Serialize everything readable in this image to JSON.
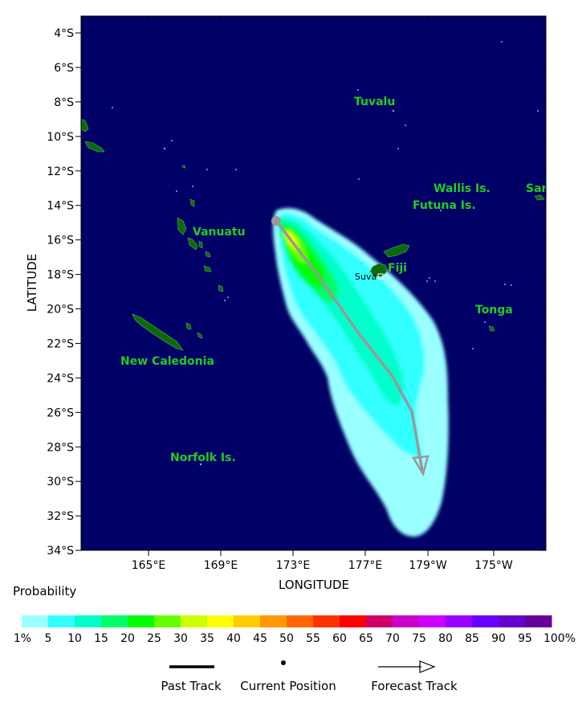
{
  "map": {
    "lat_range_deg_south": [
      3,
      34
    ],
    "lon_range": {
      "start": "162°E",
      "end": "173°W"
    },
    "background_ocean": "#000066",
    "land_color": "#0a6a0a",
    "y_ticks": [
      "4°S",
      "6°S",
      "8°S",
      "10°S",
      "12°S",
      "14°S",
      "16°S",
      "18°S",
      "20°S",
      "22°S",
      "24°S",
      "26°S",
      "28°S",
      "30°S",
      "32°S",
      "34°S"
    ],
    "x_ticks": [
      "165°E",
      "169°E",
      "173°E",
      "177°E",
      "179°W",
      "175°W"
    ],
    "x_title": "LONGITUDE",
    "y_title": "LATITUDE",
    "places": [
      {
        "name": "Tuvalu"
      },
      {
        "name": "Wallis Is."
      },
      {
        "name": "Sar"
      },
      {
        "name": "Futuna Is."
      },
      {
        "name": "Vanuatu"
      },
      {
        "name": "Fiji"
      },
      {
        "name": "Tonga"
      },
      {
        "name": "New Caledonia"
      },
      {
        "name": "Norfolk Is."
      }
    ],
    "city": {
      "name": "Suva"
    }
  },
  "track": {
    "current_position": {
      "lon": "172.8°E",
      "lat": "15.0°S"
    },
    "forecast_points": [
      {
        "lon": "172.8°E",
        "lat": "15.0°S"
      },
      {
        "lon": "174.0°E",
        "lat": "17.0°S"
      },
      {
        "lon": "176.5°E",
        "lat": "21.0°S"
      },
      {
        "lon": "178.9°E",
        "lat": "24.0°S"
      },
      {
        "lon": "179.6°E",
        "lat": "26.0°S"
      },
      {
        "lon": "179.0°W",
        "lat": "29.3°S"
      }
    ]
  },
  "probability_levels": [
    {
      "label": "1%",
      "color": "#99ffff"
    },
    {
      "label": "5",
      "color": "#33ffff"
    },
    {
      "label": "10",
      "color": "#00ffcc"
    },
    {
      "label": "15",
      "color": "#00ff66"
    },
    {
      "label": "20",
      "color": "#00ff00"
    },
    {
      "label": "25",
      "color": "#66ff00"
    },
    {
      "label": "30",
      "color": "#ccff00"
    },
    {
      "label": "35",
      "color": "#ffff00"
    },
    {
      "label": "40",
      "color": "#ffcc00"
    },
    {
      "label": "45",
      "color": "#ff9900"
    },
    {
      "label": "50",
      "color": "#ff6600"
    },
    {
      "label": "55",
      "color": "#ff3300"
    },
    {
      "label": "60",
      "color": "#ff0000"
    },
    {
      "label": "65",
      "color": "#cc0066"
    },
    {
      "label": "70",
      "color": "#cc00cc"
    },
    {
      "label": "75",
      "color": "#cc00ff"
    },
    {
      "label": "80",
      "color": "#9900ff"
    },
    {
      "label": "85",
      "color": "#6600ff"
    },
    {
      "label": "90",
      "color": "#6600cc"
    },
    {
      "label": "95",
      "color": "#660099"
    },
    {
      "label": "100%",
      "color": "#660066"
    }
  ],
  "legend": {
    "title": "Probability",
    "past_track": "Past Track",
    "current_position": "Current Position",
    "forecast_track": "Forecast Track"
  }
}
